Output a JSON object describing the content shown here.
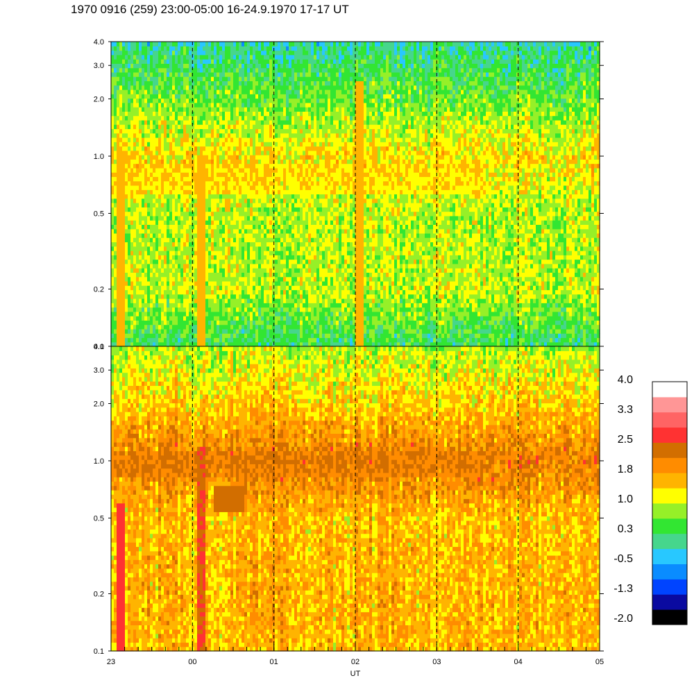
{
  "title": "1970 0916 (259) 23:00-05:00 16-24.9.1970  17-17 UT",
  "colors": {
    "scale": [
      "#000000",
      "#0a0aa0",
      "#0044ff",
      "#0a8cff",
      "#28c8ff",
      "#46d68c",
      "#32e632",
      "#96f028",
      "#ffff00",
      "#ffb400",
      "#ff8c00",
      "#d26e00",
      "#ff3232",
      "#ff6464",
      "#ff9696",
      "#ffffff"
    ]
  },
  "chart_data": {
    "type": "heatmap",
    "xlabel": "UT",
    "x_ticks": [
      "23",
      "00",
      "01",
      "02",
      "03",
      "04",
      "05"
    ],
    "y_ticks": [
      "0.1",
      "0.2",
      "0.5",
      "1.0",
      "2.0",
      "3.0",
      "4.0"
    ],
    "y_scale": "log",
    "ylim": [
      0.1,
      4.0
    ],
    "grid": "vertical dashed lines at each hour",
    "colorbar": {
      "labels": [
        "4.0",
        "3.3",
        "2.5",
        "1.8",
        "1.0",
        "0.3",
        "-0.5",
        "-1.3",
        "-2.0"
      ],
      "range": [
        -2.0,
        4.0
      ]
    },
    "panels": [
      {
        "name": "upper",
        "base_level_by_freq": [
          [
            0.1,
            0.2
          ],
          [
            0.2,
            0.95
          ],
          [
            0.5,
            0.9
          ],
          [
            1.0,
            1.35
          ],
          [
            2.0,
            0.6
          ],
          [
            4.0,
            -0.05
          ]
        ],
        "features": [
          {
            "desc": "band",
            "y_center": 0.75,
            "y_width_decades": 0.08,
            "level": 1.5
          }
        ],
        "spikes": [
          {
            "t": 0.12,
            "level": 1.7,
            "y_max": 1.0
          },
          {
            "t": 1.1,
            "level": 1.5,
            "y_max": 1.0
          },
          {
            "t": 3.05,
            "level": 1.6,
            "y_max": 2.5
          }
        ]
      },
      {
        "name": "lower",
        "base_level_by_freq": [
          [
            0.1,
            1.6
          ],
          [
            0.2,
            1.65
          ],
          [
            0.5,
            1.55
          ],
          [
            1.0,
            2.2
          ],
          [
            2.0,
            1.45
          ],
          [
            4.0,
            0.9
          ]
        ],
        "features": [
          {
            "desc": "band",
            "y_center": 0.97,
            "y_width_decades": 0.07,
            "level": 2.25
          },
          {
            "desc": "patch",
            "t_center": 1.45,
            "y_center": 0.62,
            "level": 2.4
          }
        ],
        "spikes": [
          {
            "t": 0.12,
            "level": 2.7,
            "y_max": 0.6
          },
          {
            "t": 1.1,
            "level": 2.6,
            "y_max": 1.2
          }
        ]
      }
    ]
  }
}
